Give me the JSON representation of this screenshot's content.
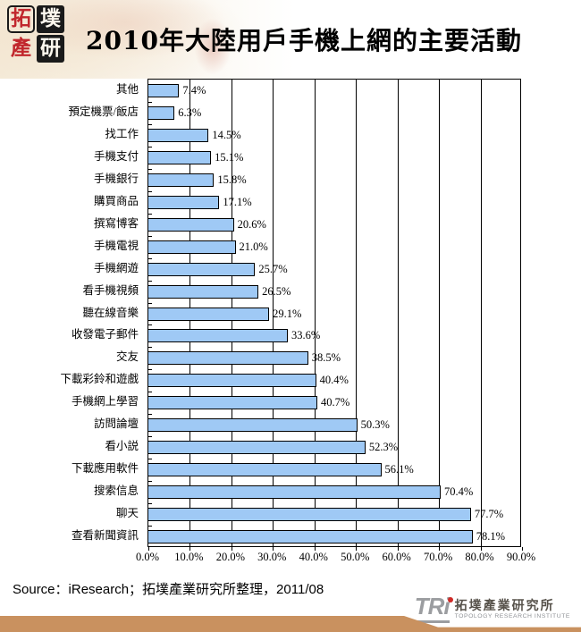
{
  "header": {
    "title": "2010年大陸用戶手機上網的主要活動",
    "logo_chars": {
      "c1": "拓",
      "c2": "墣",
      "c3": "產",
      "c4": "研"
    }
  },
  "chart_data": {
    "type": "bar",
    "orientation": "horizontal",
    "title": "2010年大陸用戶手機上網的主要活動",
    "categories": [
      "其他",
      "預定機票/飯店",
      "找工作",
      "手機支付",
      "手機銀行",
      "購買商品",
      "撰寫博客",
      "手機電視",
      "手機網遊",
      "看手機視頻",
      "聽在線音樂",
      "收發電子郵件",
      "交友",
      "下載彩鈴和遊戲",
      "手機網上學習",
      "訪問論壇",
      "看小説",
      "下載應用軟件",
      "搜索信息",
      "聊天",
      "查看新聞資訊"
    ],
    "values": [
      7.4,
      6.3,
      14.5,
      15.1,
      15.8,
      17.1,
      20.6,
      21.0,
      25.7,
      26.5,
      29.1,
      33.6,
      38.5,
      40.4,
      40.7,
      50.3,
      52.3,
      56.1,
      70.4,
      77.7,
      78.1
    ],
    "value_labels": [
      "7.4%",
      "6.3%",
      "14.5%",
      "15.1%",
      "15.8%",
      "17.1%",
      "20.6%",
      "21.0%",
      "25.7%",
      "26.5%",
      "29.1%",
      "33.6%",
      "38.5%",
      "40.4%",
      "40.7%",
      "50.3%",
      "52.3%",
      "56.1%",
      "70.4%",
      "77.7%",
      "78.1%"
    ],
    "xlim": [
      0,
      90
    ],
    "x_ticks": [
      "0.0%",
      "10.0%",
      "20.0%",
      "30.0%",
      "40.0%",
      "50.0%",
      "60.0%",
      "70.0%",
      "80.0%",
      "90.0%"
    ],
    "grid": true,
    "legend": "none",
    "bar_color": "#9FC9F5",
    "bar_border_color": "#000000"
  },
  "footer": {
    "source": "Source：iResearch；拓墣產業研究所整理，2011/08",
    "bar_color": "#C9915F",
    "logo": {
      "tri_text": "TRi",
      "name_zh": "拓墣產業研究所",
      "name_en": "TOPOLOGY RESEARCH INSTITUTE"
    }
  }
}
